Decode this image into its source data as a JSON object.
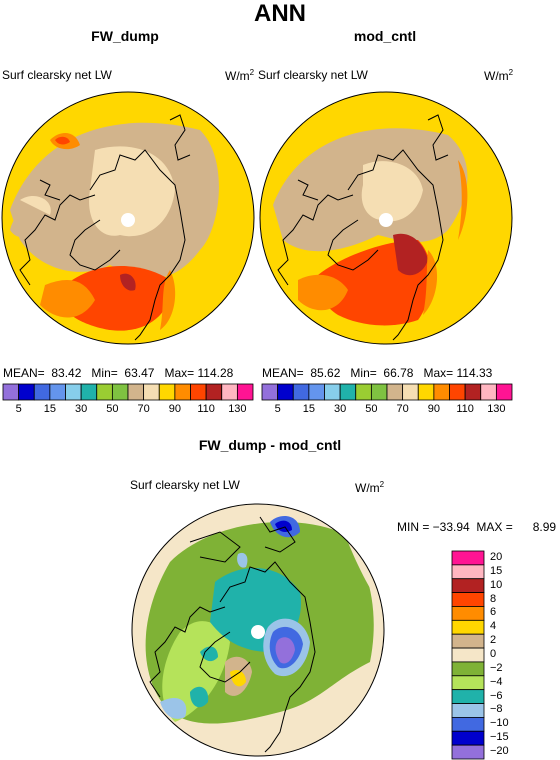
{
  "main_title": "ANN",
  "panels": [
    {
      "title": "FW_dump",
      "variable": "Surf clearsky net LW",
      "unit_base": "W/m",
      "unit_exp": "2",
      "stats": {
        "mean_label": "MEAN=",
        "mean": "83.42",
        "min_label": "Min=",
        "min": "63.47",
        "max_label": "Max=",
        "max": "114.28"
      }
    },
    {
      "title": "mod_cntl",
      "variable": "Surf clearsky net LW",
      "unit_base": "W/m",
      "unit_exp": "2",
      "stats": {
        "mean_label": "MEAN=",
        "mean": "85.62",
        "min_label": "Min=",
        "min": "66.78",
        "max_label": "Max=",
        "max": "114.33"
      }
    },
    {
      "title": "FW_dump - mod_cntl",
      "variable": "Surf clearsky net LW",
      "unit_base": "W/m",
      "unit_exp": "2",
      "stats_text": "MIN = −33.94  MAX =      8.99"
    }
  ],
  "chart_data": [
    {
      "type": "heatmap",
      "projection": "polar-stereographic-north",
      "title": "FW_dump",
      "field": "Surf clearsky net LW",
      "units": "W/m2",
      "stats": {
        "mean": 83.42,
        "min": 63.47,
        "max": 114.28
      },
      "levels": [
        5,
        15,
        30,
        50,
        70,
        90,
        110,
        130
      ],
      "colors": [
        "#9370db",
        "#0000cd",
        "#4169e1",
        "#6495ed",
        "#87ceeb",
        "#20b2aa",
        "#9acd32",
        "#7fc241",
        "#d2b48c",
        "#f5deb3",
        "#ffd700",
        "#ff8c00",
        "#ff4500",
        "#b22222",
        "#ffb6c1",
        "#ff1493"
      ]
    },
    {
      "type": "heatmap",
      "projection": "polar-stereographic-north",
      "title": "mod_cntl",
      "field": "Surf clearsky net LW",
      "units": "W/m2",
      "stats": {
        "mean": 85.62,
        "min": 66.78,
        "max": 114.33
      },
      "levels": [
        5,
        15,
        30,
        50,
        70,
        90,
        110,
        130
      ],
      "colors": [
        "#9370db",
        "#0000cd",
        "#4169e1",
        "#6495ed",
        "#87ceeb",
        "#20b2aa",
        "#9acd32",
        "#7fc241",
        "#d2b48c",
        "#f5deb3",
        "#ffd700",
        "#ff8c00",
        "#ff4500",
        "#b22222",
        "#ffb6c1",
        "#ff1493"
      ]
    },
    {
      "type": "heatmap",
      "projection": "polar-stereographic-north",
      "title": "FW_dump - mod_cntl",
      "field": "Surf clearsky net LW",
      "units": "W/m2",
      "stats": {
        "min": -33.94,
        "max": 8.99
      },
      "levels": [
        20,
        15,
        10,
        8,
        6,
        4,
        2,
        0,
        -2,
        -4,
        -6,
        -8,
        -10,
        -15,
        -20
      ],
      "colors": [
        "#ff1493",
        "#ffb6c1",
        "#b22222",
        "#ff4500",
        "#ff8c00",
        "#ffd700",
        "#d2b48c",
        "#f5e6c8",
        "#7fb236",
        "#b5e35a",
        "#20b2aa",
        "#9bc4e8",
        "#4169e1",
        "#0000cd",
        "#9370db"
      ]
    }
  ],
  "hbar_ticks": [
    "5",
    "15",
    "30",
    "50",
    "70",
    "90",
    "110",
    "130"
  ],
  "vbar_ticks": [
    "20",
    "15",
    "10",
    "8",
    "6",
    "4",
    "2",
    "0",
    "−2",
    "−4",
    "−6",
    "−8",
    "−10",
    "−15",
    "−20"
  ],
  "colors": {
    "abs_fill": [
      "#9370db",
      "#0000cd",
      "#4169e1",
      "#6495ed",
      "#87ceeb",
      "#20b2aa",
      "#9acd32",
      "#7fc241",
      "#d2b48c",
      "#f5deb3",
      "#ffd700",
      "#ff8c00",
      "#ff4500",
      "#b22222",
      "#ffb6c1",
      "#ff1493"
    ],
    "diff_fill": [
      "#ff1493",
      "#ffb6c1",
      "#b22222",
      "#ff4500",
      "#ff8c00",
      "#ffd700",
      "#d2b48c",
      "#f5e6c8",
      "#7fb236",
      "#b5e35a",
      "#20b2aa",
      "#9bc4e8",
      "#4169e1",
      "#0000cd",
      "#9370db"
    ]
  }
}
